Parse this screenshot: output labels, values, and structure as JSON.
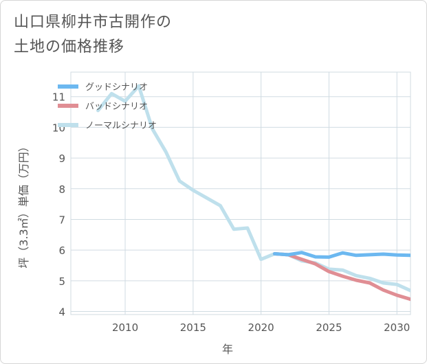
{
  "chart_data": {
    "type": "line",
    "title": "山口県柳井市古開作の\n土地の価格推移",
    "xlabel": "年",
    "ylabel": "坪（3.3㎡）単価（万円）",
    "xlim": [
      2006,
      2031
    ],
    "ylim": [
      3.9,
      11.8
    ],
    "x_ticks": [
      2010,
      2015,
      2020,
      2025,
      2030
    ],
    "y_ticks": [
      4,
      5,
      6,
      7,
      8,
      9,
      10,
      11
    ],
    "grid": true,
    "legend_position": "top-left",
    "series": [
      {
        "name": "グッドシナリオ",
        "color": "#6cb8f0",
        "x": [
          2021,
          2022,
          2023,
          2024,
          2025,
          2026,
          2027,
          2028,
          2029,
          2030,
          2031
        ],
        "y": [
          5.88,
          5.85,
          5.92,
          5.78,
          5.77,
          5.91,
          5.83,
          5.85,
          5.87,
          5.84,
          5.83
        ]
      },
      {
        "name": "バッドシナリオ",
        "color": "#e08e94",
        "x": [
          2021,
          2022,
          2023,
          2024,
          2025,
          2026,
          2027,
          2028,
          2029,
          2030,
          2031
        ],
        "y": [
          5.88,
          5.85,
          5.7,
          5.55,
          5.3,
          5.15,
          5.02,
          4.93,
          4.7,
          4.53,
          4.4
        ]
      },
      {
        "name": "ノーマルシナリオ",
        "color": "#bfe0ec",
        "x": [
          2008,
          2009,
          2010,
          2011,
          2012,
          2013,
          2014,
          2015,
          2016,
          2017,
          2018,
          2019,
          2020,
          2021,
          2022,
          2023,
          2024,
          2025,
          2026,
          2027,
          2028,
          2029,
          2030,
          2031
        ],
        "y": [
          10.55,
          11.1,
          10.85,
          11.35,
          9.95,
          9.2,
          8.25,
          7.95,
          7.7,
          7.45,
          6.68,
          6.72,
          5.7,
          5.88,
          5.85,
          5.65,
          5.58,
          5.38,
          5.35,
          5.17,
          5.08,
          4.93,
          4.88,
          4.68
        ]
      }
    ]
  }
}
